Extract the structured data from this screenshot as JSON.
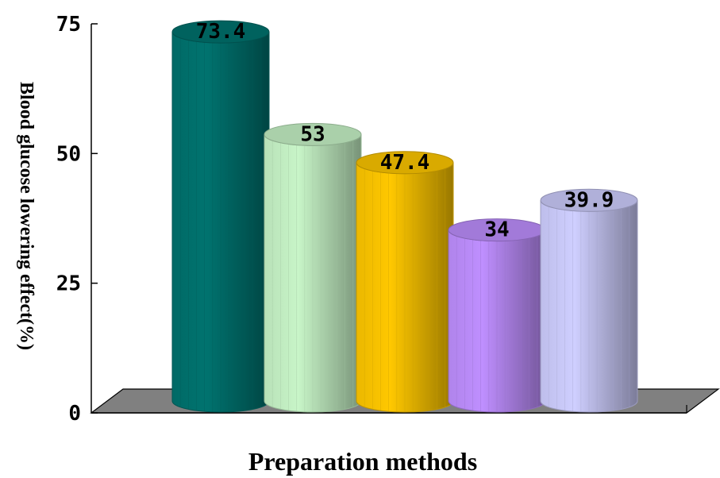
{
  "chart_data": {
    "type": "bar",
    "style": "3d-cylinder",
    "categories": [
      "",
      "",
      "",
      "",
      ""
    ],
    "values": [
      73.4,
      53,
      47.4,
      34,
      39.9
    ],
    "data_labels": [
      "73.4",
      "53",
      "47.4",
      "34",
      "39.9"
    ],
    "colors": [
      "#00736f",
      "#c8f5c8",
      "#ffc800",
      "#bf8fff",
      "#cfcfff"
    ],
    "title": "",
    "xlabel": "Preparation methods",
    "ylabel": "Blood glucose lowering effect(%)",
    "ylim": [
      0,
      75
    ],
    "yticks": [
      "0",
      "25",
      "50",
      "75"
    ],
    "floor_color": "#808080",
    "grid": false,
    "legend": "none"
  }
}
